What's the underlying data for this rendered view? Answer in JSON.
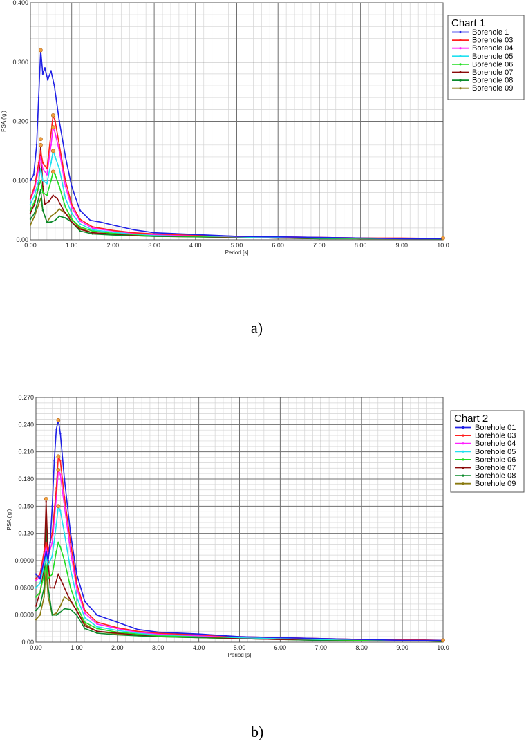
{
  "chart_data": [
    {
      "type": "line",
      "title": "Chart 1",
      "xlabel": "Period [s]",
      "ylabel": "PSA ('g')",
      "xlim": [
        0,
        10
      ],
      "ylim": [
        0,
        0.4
      ],
      "x_ticks": [
        0,
        1,
        2,
        3,
        4,
        5,
        6,
        7,
        8,
        9,
        10
      ],
      "x_tick_labels": [
        "0.00",
        "1.00",
        "2.00",
        "3.00",
        "4.00",
        "5.00",
        "6.00",
        "7.00",
        "8.00",
        "9.00",
        "10.0"
      ],
      "y_ticks": [
        0,
        0.1,
        0.2,
        0.3,
        0.4
      ],
      "y_tick_labels": [
        "0.00",
        "0.100",
        "0.200",
        "0.300",
        "0.400"
      ],
      "grid": true,
      "legend_position": "top-right",
      "series": [
        {
          "name": "Borehole 1",
          "color": "#1f1fe6",
          "x": [
            0,
            0.08,
            0.15,
            0.2,
            0.25,
            0.3,
            0.35,
            0.42,
            0.5,
            0.58,
            0.7,
            0.85,
            1.0,
            1.2,
            1.45,
            1.7,
            2.0,
            2.5,
            3.0,
            4.0,
            5.0,
            6.0,
            7.0,
            8.0,
            9.0,
            10.0
          ],
          "y": [
            0.1,
            0.11,
            0.16,
            0.24,
            0.32,
            0.28,
            0.29,
            0.27,
            0.285,
            0.26,
            0.2,
            0.14,
            0.09,
            0.05,
            0.033,
            0.03,
            0.025,
            0.017,
            0.012,
            0.009,
            0.006,
            0.005,
            0.004,
            0.003,
            0.002,
            0.002
          ]
        },
        {
          "name": "Borehole 03",
          "color": "#ff2020",
          "x": [
            0,
            0.1,
            0.2,
            0.25,
            0.3,
            0.4,
            0.5,
            0.55,
            0.6,
            0.7,
            0.85,
            1.0,
            1.2,
            1.5,
            2.0,
            2.5,
            3.0,
            4.0,
            5.0,
            6.0,
            7.0,
            8.0,
            9.0,
            10.0
          ],
          "y": [
            0.07,
            0.09,
            0.13,
            0.15,
            0.13,
            0.12,
            0.18,
            0.21,
            0.2,
            0.16,
            0.1,
            0.06,
            0.035,
            0.022,
            0.016,
            0.012,
            0.01,
            0.008,
            0.006,
            0.005,
            0.004,
            0.003,
            0.003,
            0.002
          ]
        },
        {
          "name": "Borehole 04",
          "color": "#ff20ff",
          "x": [
            0,
            0.1,
            0.2,
            0.25,
            0.3,
            0.4,
            0.5,
            0.55,
            0.6,
            0.7,
            0.85,
            1.0,
            1.2,
            1.5,
            2.0,
            2.5,
            3.0,
            4.0,
            5.0,
            6.0,
            7.0,
            8.0,
            9.0,
            10.0
          ],
          "y": [
            0.068,
            0.085,
            0.12,
            0.14,
            0.12,
            0.11,
            0.16,
            0.19,
            0.18,
            0.15,
            0.09,
            0.055,
            0.032,
            0.02,
            0.015,
            0.011,
            0.009,
            0.007,
            0.006,
            0.005,
            0.004,
            0.003,
            0.002,
            0.002
          ]
        },
        {
          "name": "Borehole 05",
          "color": "#20e0f0",
          "x": [
            0,
            0.1,
            0.2,
            0.25,
            0.3,
            0.4,
            0.5,
            0.55,
            0.6,
            0.7,
            0.85,
            1.0,
            1.2,
            1.5,
            2.0,
            2.5,
            3.0,
            4.0,
            5.0,
            6.0,
            7.0,
            8.0,
            9.0,
            10.0
          ],
          "y": [
            0.06,
            0.075,
            0.1,
            0.12,
            0.1,
            0.095,
            0.13,
            0.15,
            0.14,
            0.12,
            0.07,
            0.045,
            0.027,
            0.017,
            0.013,
            0.01,
            0.008,
            0.007,
            0.005,
            0.004,
            0.003,
            0.003,
            0.002,
            0.002
          ]
        },
        {
          "name": "Borehole 06",
          "color": "#20dd20",
          "x": [
            0,
            0.1,
            0.2,
            0.25,
            0.3,
            0.4,
            0.5,
            0.55,
            0.6,
            0.7,
            0.85,
            1.0,
            1.2,
            1.5,
            2.0,
            2.5,
            3.0,
            4.0,
            5.0,
            6.0,
            7.0,
            8.0,
            9.0,
            10.0
          ],
          "y": [
            0.05,
            0.065,
            0.09,
            0.1,
            0.08,
            0.075,
            0.1,
            0.115,
            0.11,
            0.09,
            0.055,
            0.035,
            0.022,
            0.015,
            0.011,
            0.009,
            0.007,
            0.006,
            0.005,
            0.004,
            0.003,
            0.002,
            0.002,
            0.002
          ]
        },
        {
          "name": "Borehole 07",
          "color": "#8b0a0a",
          "x": [
            0,
            0.1,
            0.2,
            0.25,
            0.3,
            0.35,
            0.45,
            0.55,
            0.65,
            0.8,
            1.0,
            1.2,
            1.5,
            2.0,
            2.5,
            3.0,
            4.0,
            5.0,
            6.0,
            7.0,
            8.0,
            9.0,
            10.0
          ],
          "y": [
            0.045,
            0.06,
            0.09,
            0.16,
            0.09,
            0.06,
            0.065,
            0.075,
            0.07,
            0.05,
            0.03,
            0.018,
            0.012,
            0.01,
            0.008,
            0.007,
            0.006,
            0.004,
            0.003,
            0.003,
            0.002,
            0.002,
            0.002
          ]
        },
        {
          "name": "Borehole 08",
          "color": "#0a8a2a",
          "x": [
            0,
            0.1,
            0.2,
            0.25,
            0.3,
            0.4,
            0.5,
            0.6,
            0.7,
            0.85,
            1.0,
            1.2,
            1.5,
            2.0,
            2.5,
            3.0,
            4.0,
            5.0,
            6.0,
            7.0,
            8.0,
            9.0,
            10.0
          ],
          "y": [
            0.035,
            0.045,
            0.07,
            0.085,
            0.05,
            0.03,
            0.03,
            0.033,
            0.04,
            0.037,
            0.03,
            0.015,
            0.01,
            0.008,
            0.007,
            0.006,
            0.005,
            0.004,
            0.003,
            0.002,
            0.002,
            0.002,
            0.001
          ]
        },
        {
          "name": "Borehole 09",
          "color": "#8a7a10",
          "x": [
            0,
            0.1,
            0.2,
            0.25,
            0.3,
            0.4,
            0.5,
            0.6,
            0.7,
            0.85,
            1.0,
            1.2,
            1.5,
            2.0,
            2.5,
            3.0,
            4.0,
            5.0,
            6.0,
            7.0,
            8.0,
            9.0,
            10.0
          ],
          "y": [
            0.025,
            0.04,
            0.06,
            0.07,
            0.05,
            0.03,
            0.04,
            0.045,
            0.052,
            0.045,
            0.035,
            0.02,
            0.012,
            0.009,
            0.007,
            0.006,
            0.005,
            0.004,
            0.003,
            0.002,
            0.002,
            0.002,
            0.001
          ]
        }
      ],
      "peak_markers": [
        {
          "x": 0.25,
          "y": 0.32
        },
        {
          "x": 0.55,
          "y": 0.21
        },
        {
          "x": 0.55,
          "y": 0.19
        },
        {
          "x": 0.55,
          "y": 0.15
        },
        {
          "x": 0.55,
          "y": 0.115
        },
        {
          "x": 0.25,
          "y": 0.16
        },
        {
          "x": 0.25,
          "y": 0.17
        },
        {
          "x": 10.0,
          "y": 0.003
        }
      ]
    },
    {
      "type": "line",
      "title": "Chart 2",
      "xlabel": "Period [s]",
      "ylabel": "PSA ('g')",
      "xlim": [
        0,
        10
      ],
      "ylim": [
        0,
        0.27
      ],
      "x_ticks": [
        0,
        1,
        2,
        3,
        4,
        5,
        6,
        7,
        8,
        9,
        10
      ],
      "x_tick_labels": [
        "0.00",
        "1.00",
        "2.00",
        "3.00",
        "4.00",
        "5.00",
        "6.00",
        "7.00",
        "8.00",
        "9.00",
        "10.0"
      ],
      "y_ticks": [
        0,
        0.03,
        0.06,
        0.09,
        0.12,
        0.15,
        0.18,
        0.21,
        0.24,
        0.27
      ],
      "y_tick_labels": [
        "0.00",
        "0.0300",
        "0.0600",
        "0.0900",
        "0.120",
        "0.150",
        "0.180",
        "0.210",
        "0.240",
        "0.270"
      ],
      "grid": true,
      "legend_position": "top-right",
      "series": [
        {
          "name": "Borehole 01",
          "color": "#1f1fe6",
          "x": [
            0,
            0.1,
            0.2,
            0.25,
            0.3,
            0.35,
            0.4,
            0.45,
            0.5,
            0.55,
            0.6,
            0.7,
            0.85,
            1.0,
            1.2,
            1.5,
            2.0,
            2.5,
            3.0,
            4.0,
            5.0,
            6.0,
            7.0,
            8.0,
            9.0,
            10.0
          ],
          "y": [
            0.075,
            0.07,
            0.09,
            0.1,
            0.09,
            0.11,
            0.15,
            0.2,
            0.235,
            0.245,
            0.23,
            0.18,
            0.12,
            0.075,
            0.045,
            0.03,
            0.022,
            0.014,
            0.011,
            0.009,
            0.006,
            0.005,
            0.004,
            0.003,
            0.002,
            0.002
          ]
        },
        {
          "name": "Borehole 03",
          "color": "#ff2020",
          "x": [
            0,
            0.1,
            0.2,
            0.25,
            0.3,
            0.4,
            0.5,
            0.55,
            0.6,
            0.7,
            0.85,
            1.0,
            1.2,
            1.5,
            2.0,
            2.5,
            3.0,
            4.0,
            5.0,
            6.0,
            7.0,
            8.0,
            9.0,
            10.0
          ],
          "y": [
            0.07,
            0.075,
            0.1,
            0.11,
            0.1,
            0.12,
            0.17,
            0.205,
            0.2,
            0.16,
            0.11,
            0.065,
            0.035,
            0.022,
            0.016,
            0.012,
            0.01,
            0.008,
            0.006,
            0.005,
            0.004,
            0.003,
            0.003,
            0.002
          ]
        },
        {
          "name": "Borehole 04",
          "color": "#ff20ff",
          "x": [
            0,
            0.1,
            0.2,
            0.25,
            0.3,
            0.4,
            0.5,
            0.55,
            0.6,
            0.7,
            0.85,
            1.0,
            1.2,
            1.5,
            2.0,
            2.5,
            3.0,
            4.0,
            5.0,
            6.0,
            7.0,
            8.0,
            9.0,
            10.0
          ],
          "y": [
            0.068,
            0.072,
            0.095,
            0.105,
            0.095,
            0.11,
            0.16,
            0.19,
            0.185,
            0.15,
            0.1,
            0.06,
            0.032,
            0.02,
            0.015,
            0.011,
            0.009,
            0.007,
            0.006,
            0.005,
            0.004,
            0.003,
            0.002,
            0.002
          ]
        },
        {
          "name": "Borehole 05",
          "color": "#20e0f0",
          "x": [
            0,
            0.1,
            0.2,
            0.25,
            0.3,
            0.4,
            0.5,
            0.55,
            0.6,
            0.7,
            0.85,
            1.0,
            1.2,
            1.5,
            2.0,
            2.5,
            3.0,
            4.0,
            5.0,
            6.0,
            7.0,
            8.0,
            9.0,
            10.0
          ],
          "y": [
            0.06,
            0.065,
            0.085,
            0.095,
            0.085,
            0.095,
            0.13,
            0.15,
            0.145,
            0.12,
            0.08,
            0.05,
            0.027,
            0.017,
            0.013,
            0.01,
            0.008,
            0.007,
            0.005,
            0.004,
            0.003,
            0.003,
            0.002,
            0.002
          ]
        },
        {
          "name": "Borehole 06",
          "color": "#20dd20",
          "x": [
            0,
            0.1,
            0.2,
            0.25,
            0.3,
            0.4,
            0.5,
            0.55,
            0.6,
            0.7,
            0.85,
            1.0,
            1.2,
            1.5,
            2.0,
            2.5,
            3.0,
            4.0,
            5.0,
            6.0,
            7.0,
            8.0,
            9.0,
            10.0
          ],
          "y": [
            0.05,
            0.055,
            0.075,
            0.085,
            0.07,
            0.075,
            0.1,
            0.11,
            0.105,
            0.09,
            0.06,
            0.04,
            0.022,
            0.015,
            0.011,
            0.009,
            0.007,
            0.006,
            0.005,
            0.004,
            0.003,
            0.002,
            0.002,
            0.002
          ]
        },
        {
          "name": "Borehole 07",
          "color": "#8b0a0a",
          "x": [
            0,
            0.1,
            0.2,
            0.25,
            0.3,
            0.35,
            0.45,
            0.55,
            0.65,
            0.8,
            1.0,
            1.2,
            1.5,
            2.0,
            2.5,
            3.0,
            4.0,
            5.0,
            6.0,
            7.0,
            8.0,
            9.0,
            10.0
          ],
          "y": [
            0.04,
            0.055,
            0.08,
            0.155,
            0.09,
            0.06,
            0.06,
            0.075,
            0.065,
            0.05,
            0.035,
            0.018,
            0.012,
            0.01,
            0.008,
            0.007,
            0.006,
            0.004,
            0.003,
            0.003,
            0.002,
            0.002,
            0.002
          ]
        },
        {
          "name": "Borehole 08",
          "color": "#0a8a2a",
          "x": [
            0,
            0.1,
            0.2,
            0.25,
            0.3,
            0.4,
            0.5,
            0.6,
            0.7,
            0.85,
            1.0,
            1.2,
            1.5,
            2.0,
            2.5,
            3.0,
            4.0,
            5.0,
            6.0,
            7.0,
            8.0,
            9.0,
            10.0
          ],
          "y": [
            0.035,
            0.04,
            0.06,
            0.13,
            0.06,
            0.03,
            0.03,
            0.033,
            0.037,
            0.036,
            0.03,
            0.015,
            0.01,
            0.008,
            0.007,
            0.006,
            0.005,
            0.004,
            0.003,
            0.002,
            0.002,
            0.002,
            0.001
          ]
        },
        {
          "name": "Borehole 09",
          "color": "#8a7a10",
          "x": [
            0,
            0.1,
            0.2,
            0.25,
            0.3,
            0.4,
            0.5,
            0.6,
            0.7,
            0.85,
            1.0,
            1.2,
            1.5,
            2.0,
            2.5,
            3.0,
            4.0,
            5.0,
            6.0,
            7.0,
            8.0,
            9.0,
            10.0
          ],
          "y": [
            0.025,
            0.03,
            0.05,
            0.08,
            0.05,
            0.03,
            0.032,
            0.04,
            0.05,
            0.045,
            0.035,
            0.02,
            0.012,
            0.009,
            0.007,
            0.006,
            0.005,
            0.004,
            0.003,
            0.002,
            0.002,
            0.002,
            0.001
          ]
        }
      ],
      "peak_markers": [
        {
          "x": 0.55,
          "y": 0.245
        },
        {
          "x": 0.55,
          "y": 0.205
        },
        {
          "x": 0.55,
          "y": 0.19
        },
        {
          "x": 0.55,
          "y": 0.15
        },
        {
          "x": 0.25,
          "y": 0.158
        },
        {
          "x": 10.0,
          "y": 0.002
        }
      ]
    }
  ],
  "captions": {
    "a": "a)",
    "b": "b)"
  }
}
